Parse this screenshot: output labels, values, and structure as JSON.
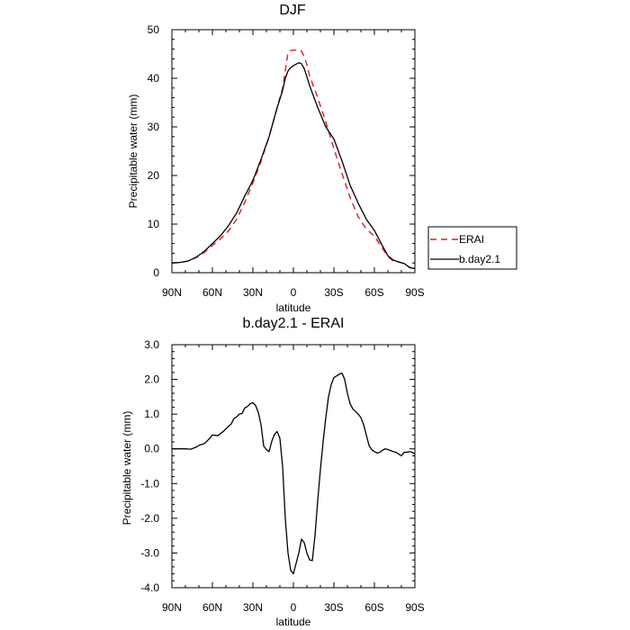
{
  "chart_data": [
    {
      "type": "line",
      "title": "DJF",
      "xlabel": "latitude",
      "ylabel": "Precipitable water (mm)",
      "xlim": [
        90,
        -90
      ],
      "ylim": [
        0,
        50
      ],
      "x_ticks": [
        90,
        60,
        30,
        0,
        -30,
        -60,
        -90
      ],
      "x_tick_labels": [
        "90N",
        "60N",
        "30N",
        "0",
        "30S",
        "60S",
        "90S"
      ],
      "y_ticks": [
        0,
        10,
        20,
        30,
        40,
        50
      ],
      "y_tick_labels": [
        "0",
        "10",
        "20",
        "30",
        "40",
        "50"
      ],
      "legend_position": "outside-right",
      "series": [
        {
          "name": "ERAI",
          "color": "#e41a1c",
          "style": "dashed",
          "x": [
            90,
            84,
            78,
            72,
            66,
            60,
            54,
            48,
            42,
            36,
            30,
            24,
            18,
            12,
            8,
            6,
            4,
            2,
            0,
            -2,
            -4,
            -6,
            -8,
            -10,
            -12,
            -18,
            -24,
            -30,
            -36,
            -42,
            -48,
            -54,
            -60,
            -66,
            -70,
            -74,
            -78,
            -82,
            -86,
            -90
          ],
          "y": [
            2,
            2.1,
            2.4,
            3.1,
            4.2,
            5.6,
            7.0,
            8.6,
            11.0,
            14.5,
            18.5,
            22.9,
            28.0,
            34.0,
            38.0,
            41.5,
            45.3,
            45.7,
            45.8,
            45.8,
            45.9,
            45.6,
            44.5,
            42.8,
            40.5,
            36.0,
            31.0,
            25.5,
            20.4,
            15.5,
            11.5,
            9.0,
            7.5,
            5.0,
            3.3,
            2.4,
            2.2,
            1.9,
            1.1,
            0.8
          ]
        },
        {
          "name": "b.day2.1",
          "color": "#000000",
          "style": "solid",
          "x": [
            90,
            84,
            78,
            72,
            66,
            60,
            54,
            48,
            42,
            36,
            30,
            24,
            18,
            12,
            8,
            6,
            4,
            2,
            0,
            -2,
            -4,
            -6,
            -8,
            -10,
            -12,
            -18,
            -24,
            -30,
            -36,
            -42,
            -48,
            -54,
            -60,
            -66,
            -70,
            -74,
            -78,
            -82,
            -86,
            -90
          ],
          "y": [
            2,
            2.1,
            2.4,
            3.2,
            4.4,
            6.0,
            7.6,
            9.7,
            12.3,
            15.8,
            19.0,
            23.3,
            28.0,
            34.0,
            37.5,
            40.0,
            41.5,
            42.2,
            42.6,
            42.9,
            43.2,
            43.0,
            42.0,
            40.3,
            38.5,
            34.0,
            30.0,
            27.5,
            23.0,
            18.0,
            14.3,
            11.0,
            8.7,
            5.5,
            3.5,
            2.6,
            2.2,
            1.9,
            1.1,
            0.8
          ]
        }
      ]
    },
    {
      "type": "line",
      "title": "b.day2.1 - ERAI",
      "xlabel": "latitude",
      "ylabel": "Precipitable water (mm)",
      "xlim": [
        90,
        -90
      ],
      "ylim": [
        -4,
        3
      ],
      "x_ticks": [
        90,
        60,
        30,
        0,
        -30,
        -60,
        -90
      ],
      "x_tick_labels": [
        "90N",
        "60N",
        "30N",
        "0",
        "30S",
        "60S",
        "90S"
      ],
      "y_ticks": [
        -4,
        -3,
        -2,
        -1,
        0,
        1,
        2,
        3
      ],
      "y_tick_labels": [
        "-4.0",
        "-3.0",
        "-2.0",
        "-1.0",
        "0.0",
        "1.0",
        "2.0",
        "3.0"
      ],
      "series": [
        {
          "color": "#000000",
          "style": "solid",
          "x": [
            90,
            84,
            80,
            76,
            72,
            70,
            66,
            62,
            60,
            56,
            52,
            48,
            46,
            44,
            42,
            40,
            38,
            36,
            34,
            32,
            30,
            28,
            26,
            24,
            22,
            20,
            18,
            16,
            14,
            12,
            10,
            8,
            6,
            4,
            2,
            0,
            -2,
            -4,
            -6,
            -8,
            -10,
            -12,
            -14,
            -16,
            -18,
            -20,
            -22,
            -24,
            -26,
            -28,
            -30,
            -32,
            -34,
            -36,
            -38,
            -40,
            -42,
            -44,
            -46,
            -48,
            -50,
            -52,
            -54,
            -56,
            -58,
            -60,
            -62,
            -64,
            -66,
            -68,
            -70,
            -72,
            -74,
            -76,
            -78,
            -80,
            -82,
            -84,
            -86,
            -88,
            -90
          ],
          "y": [
            0,
            0,
            0,
            -0.01,
            0.05,
            0.1,
            0.15,
            0.3,
            0.4,
            0.38,
            0.5,
            0.65,
            0.72,
            0.88,
            0.92,
            1.0,
            1.02,
            1.18,
            1.22,
            1.3,
            1.33,
            1.25,
            1.05,
            0.7,
            0.08,
            -0.02,
            -0.08,
            0.22,
            0.42,
            0.5,
            0.3,
            -0.5,
            -2.0,
            -3.0,
            -3.5,
            -3.6,
            -3.3,
            -3.0,
            -2.6,
            -2.7,
            -3.0,
            -3.2,
            -3.22,
            -2.5,
            -1.5,
            -0.6,
            0.2,
            0.9,
            1.5,
            1.85,
            2.05,
            2.1,
            2.15,
            2.18,
            2.0,
            1.6,
            1.3,
            1.15,
            1.08,
            1.0,
            0.9,
            0.7,
            0.4,
            0.1,
            -0.02,
            -0.08,
            -0.12,
            -0.1,
            -0.04,
            0.0,
            -0.02,
            -0.05,
            -0.08,
            -0.1,
            -0.15,
            -0.2,
            -0.1,
            -0.1,
            -0.08,
            -0.1,
            -0.15
          ]
        }
      ]
    }
  ]
}
